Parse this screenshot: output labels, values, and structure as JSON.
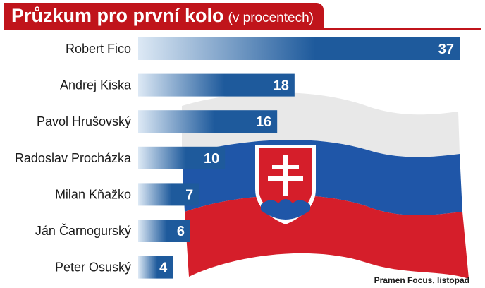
{
  "header": {
    "title": "Průzkum pro první kolo",
    "subtitle": "(v procentech)"
  },
  "colors": {
    "header_bg": "#c0141b",
    "bar_dark": "#1e5a9c",
    "bar_light": "#dde9f5",
    "flag_white": "#e8e8e8",
    "flag_blue": "#1f56a8",
    "flag_red": "#d51e2a"
  },
  "chart_data": {
    "type": "bar",
    "orientation": "horizontal",
    "categories": [
      "Robert Fico",
      "Andrej Kiska",
      "Pavol Hrušovský",
      "Radoslav Procházka",
      "Milan Kňažko",
      "Ján Čarnogurský",
      "Peter Osuský"
    ],
    "values": [
      37,
      18,
      16,
      10,
      7,
      6,
      4
    ],
    "title": "Průzkum pro první kolo",
    "subtitle": "(v procentech)",
    "xlabel": "",
    "ylabel": "",
    "grid": false,
    "legend": "none",
    "data_labels": true
  },
  "footer": {
    "source": "Pramen Focus, listopad"
  },
  "decoration": {
    "flag_icon": "slovak-flag-icon"
  }
}
